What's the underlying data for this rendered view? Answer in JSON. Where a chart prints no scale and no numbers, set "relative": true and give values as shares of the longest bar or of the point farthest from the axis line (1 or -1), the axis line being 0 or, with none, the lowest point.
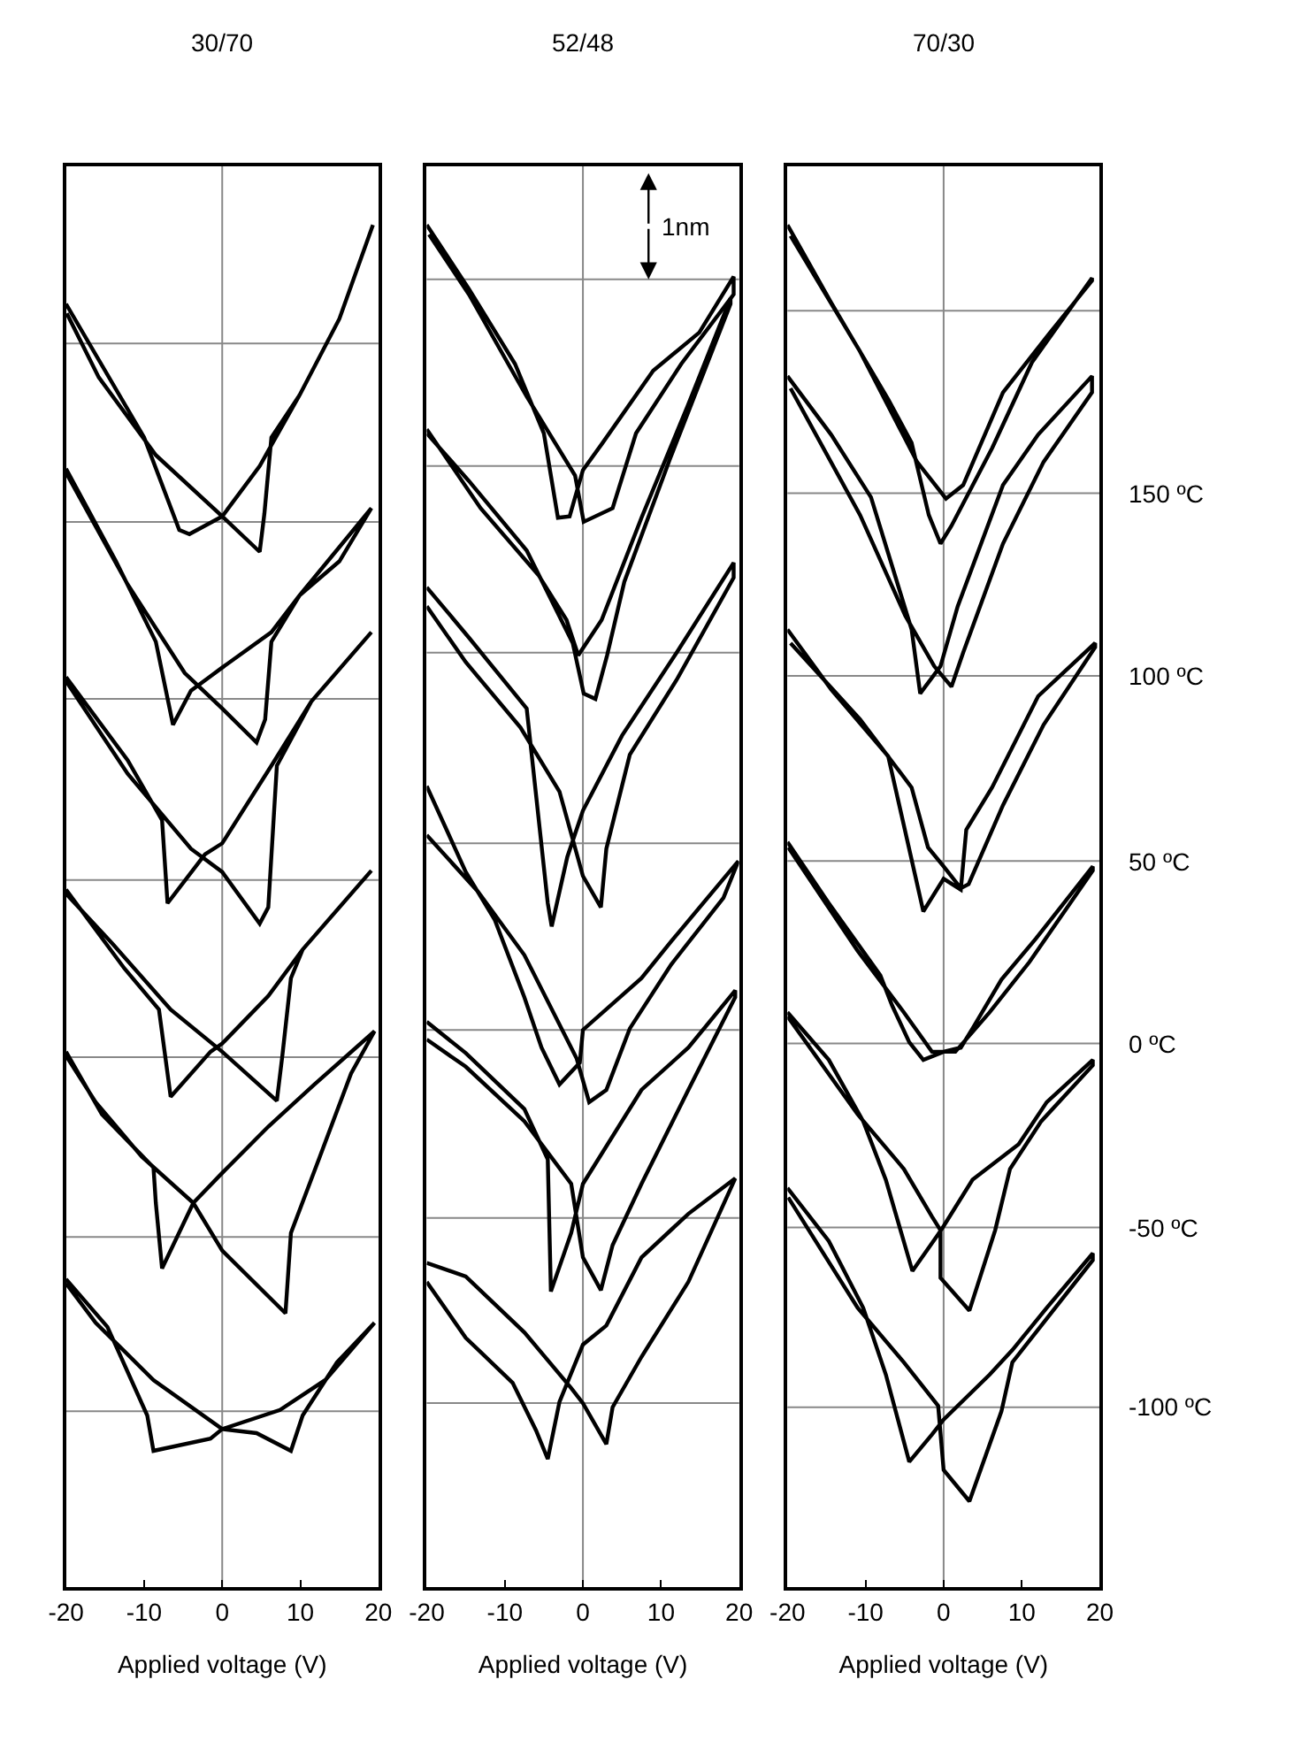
{
  "chart_data": [
    {
      "type": "line",
      "title": "30/70",
      "xlabel": "Applied voltage (V)",
      "relative": true,
      "xlim": [
        -20,
        20
      ],
      "xticks": [
        -20,
        -10,
        0,
        10,
        20
      ],
      "series": [
        {
          "color": "#000000",
          "x": [
            -20,
            -10,
            -5.5,
            -4.2,
            0,
            4.8,
            9.9,
            15,
            19.3,
            15,
            9.9,
            6.3,
            5.4,
            4.8,
            0,
            -8.5,
            -15.8,
            -19.9
          ],
          "values": [
            0.942,
            0.844,
            0.776,
            0.773,
            0.786,
            0.823,
            0.875,
            0.931,
            1.0,
            0.931,
            0.875,
            0.844,
            0.788,
            0.76,
            0.786,
            0.831,
            0.888,
            0.935
          ]
        },
        {
          "color": "#000000",
          "x": [
            -20,
            -13.6,
            -8.5,
            -6.3,
            -4,
            0,
            6.3,
            9.9,
            15,
            19.1,
            9.9,
            6.3,
            5.5,
            4.4,
            0,
            -4.8,
            -12.1,
            -20
          ],
          "values": [
            0.821,
            0.753,
            0.694,
            0.633,
            0.658,
            0.675,
            0.701,
            0.728,
            0.753,
            0.792,
            0.728,
            0.694,
            0.637,
            0.62,
            0.645,
            0.671,
            0.736,
            0.818
          ]
        },
        {
          "color": "#000000",
          "x": [
            -20,
            -12.1,
            -7.7,
            -7,
            -2.2,
            0,
            6.3,
            11.4,
            19.1,
            11.4,
            7,
            5.9,
            4.8,
            0,
            -4,
            -12.1,
            -20
          ],
          "values": [
            0.668,
            0.607,
            0.563,
            0.502,
            0.538,
            0.546,
            0.603,
            0.65,
            0.701,
            0.65,
            0.603,
            0.499,
            0.487,
            0.525,
            0.542,
            0.597,
            0.665
          ]
        },
        {
          "color": "#000000",
          "x": [
            -20,
            -12.5,
            -8.1,
            -6.6,
            -1.5,
            0,
            5.9,
            10.3,
            19.1,
            10.3,
            8.8,
            7.7,
            7,
            0,
            -6.6,
            -14,
            -20
          ],
          "values": [
            0.512,
            0.454,
            0.424,
            0.36,
            0.393,
            0.399,
            0.434,
            0.468,
            0.526,
            0.468,
            0.447,
            0.39,
            0.357,
            0.393,
            0.424,
            0.472,
            0.509
          ]
        },
        {
          "color": "#000000",
          "x": [
            -20,
            -15.4,
            -8.8,
            -8.5,
            -7.7,
            -3.7,
            0,
            5.9,
            11.8,
            19.5,
            16.5,
            12.5,
            8.8,
            8.1,
            0,
            -3.7,
            -10.3,
            -16.2,
            -20
          ],
          "values": [
            0.393,
            0.347,
            0.308,
            0.282,
            0.234,
            0.282,
            0.304,
            0.338,
            0.369,
            0.408,
            0.377,
            0.316,
            0.26,
            0.201,
            0.247,
            0.282,
            0.316,
            0.356,
            0.39
          ]
        },
        {
          "color": "#000000",
          "x": [
            -20,
            -14.7,
            -9.6,
            -8.8,
            -1.5,
            0,
            7.4,
            13.2,
            19.5,
            14.7,
            10.3,
            8.8,
            4.4,
            0,
            -8.8,
            -16.2,
            -20
          ],
          "values": [
            0.226,
            0.191,
            0.126,
            0.1,
            0.109,
            0.116,
            0.13,
            0.152,
            0.194,
            0.165,
            0.126,
            0.1,
            0.113,
            0.116,
            0.152,
            0.194,
            0.223
          ]
        }
      ],
      "ref_lines": [
        {
          "axis": "x",
          "value": 0,
          "color": "#888888"
        },
        {
          "axis": "y",
          "value": 0.913,
          "color": "#888888"
        },
        {
          "axis": "y",
          "value": 0.782,
          "color": "#888888"
        },
        {
          "axis": "y",
          "value": 0.652,
          "color": "#888888"
        },
        {
          "axis": "y",
          "value": 0.519,
          "color": "#888888"
        },
        {
          "axis": "y",
          "value": 0.389,
          "color": "#888888"
        },
        {
          "axis": "y",
          "value": 0.257,
          "color": "#888888"
        },
        {
          "axis": "y",
          "value": 0.129,
          "color": "#888888"
        }
      ]
    },
    {
      "type": "line",
      "title": "52/48",
      "xlabel": "Applied voltage (V)",
      "relative": true,
      "xlim": [
        -20,
        20
      ],
      "xticks": [
        -20,
        -10,
        0,
        10,
        20
      ],
      "annotations": [
        "1nm"
      ],
      "series": [
        {
          "color": "#000000",
          "x": [
            -20,
            -14.6,
            -8.7,
            -5,
            -3.2,
            -1.7,
            0,
            2.4,
            9,
            14.9,
            19.3,
            19.3,
            12.6,
            6.8,
            3.8,
            0.1,
            -1,
            -7.2,
            -14.6,
            -19.7
          ],
          "values": [
            1.0,
            0.953,
            0.898,
            0.847,
            0.785,
            0.786,
            0.82,
            0.839,
            0.893,
            0.921,
            0.962,
            0.949,
            0.898,
            0.847,
            0.792,
            0.782,
            0.816,
            0.874,
            0.949,
            0.993
          ]
        },
        {
          "color": "#000000",
          "x": [
            -20,
            -13.1,
            -5.7,
            -2.1,
            -0.6,
            2.4,
            7.5,
            13.4,
            18.9,
            18.9,
            11.2,
            5.3,
            3.1,
            1.6,
            0.1,
            -1.3,
            -7.2,
            -14.6,
            -20
          ],
          "values": [
            0.85,
            0.792,
            0.743,
            0.71,
            0.684,
            0.71,
            0.785,
            0.867,
            0.946,
            0.942,
            0.829,
            0.738,
            0.684,
            0.652,
            0.656,
            0.693,
            0.761,
            0.812,
            0.847
          ]
        },
        {
          "color": "#000000",
          "x": [
            -20,
            -14.6,
            -7.2,
            -4.5,
            -4,
            -2,
            0,
            5,
            12,
            19.3,
            19.3,
            12,
            6,
            3,
            2.3,
            0,
            -3,
            -8,
            -15,
            -20
          ],
          "values": [
            0.734,
            0.697,
            0.645,
            0.502,
            0.485,
            0.536,
            0.57,
            0.625,
            0.686,
            0.752,
            0.741,
            0.666,
            0.611,
            0.542,
            0.499,
            0.522,
            0.584,
            0.631,
            0.679,
            0.72
          ]
        },
        {
          "color": "#000000",
          "x": [
            -20,
            -15,
            -11.3,
            -7.5,
            -5.3,
            -3,
            -0.4,
            0,
            7.5,
            11.3,
            19.9,
            18,
            11.3,
            6,
            3,
            0.8,
            -0.8,
            -7.5,
            -13.5,
            -20
          ],
          "values": [
            0.588,
            0.525,
            0.49,
            0.433,
            0.396,
            0.369,
            0.385,
            0.409,
            0.447,
            0.474,
            0.533,
            0.506,
            0.457,
            0.41,
            0.365,
            0.356,
            0.388,
            0.464,
            0.511,
            0.552
          ]
        },
        {
          "color": "#000000",
          "x": [
            -20,
            -15,
            -7.5,
            -4.5,
            -4.1,
            -1.5,
            0,
            7.5,
            13.5,
            19.5,
            19.5,
            13.5,
            7.5,
            3.8,
            2.3,
            0,
            -1.5,
            -7.5,
            -15,
            -20
          ],
          "values": [
            0.415,
            0.392,
            0.351,
            0.314,
            0.217,
            0.26,
            0.296,
            0.365,
            0.396,
            0.438,
            0.433,
            0.365,
            0.296,
            0.251,
            0.218,
            0.242,
            0.296,
            0.342,
            0.382,
            0.402
          ]
        },
        {
          "color": "#000000",
          "x": [
            -20,
            -15,
            -7.5,
            -1.5,
            0,
            3,
            3.8,
            7.5,
            13.5,
            19.5,
            13.5,
            7.5,
            3,
            0,
            -3,
            -4.5,
            -6,
            -9,
            -15,
            -20
          ],
          "values": [
            0.238,
            0.228,
            0.187,
            0.146,
            0.135,
            0.105,
            0.132,
            0.169,
            0.224,
            0.3,
            0.274,
            0.242,
            0.192,
            0.178,
            0.136,
            0.094,
            0.115,
            0.15,
            0.183,
            0.224
          ]
        }
      ],
      "ref_lines": [
        {
          "axis": "x",
          "value": 0,
          "color": "#888888"
        },
        {
          "axis": "y",
          "value": 0.96,
          "color": "#888888"
        },
        {
          "axis": "y",
          "value": 0.823,
          "color": "#888888"
        },
        {
          "axis": "y",
          "value": 0.686,
          "color": "#888888"
        },
        {
          "axis": "y",
          "value": 0.546,
          "color": "#888888"
        },
        {
          "axis": "y",
          "value": 0.409,
          "color": "#888888"
        },
        {
          "axis": "y",
          "value": 0.271,
          "color": "#888888"
        },
        {
          "axis": "y",
          "value": 0.135,
          "color": "#888888"
        }
      ]
    },
    {
      "type": "line",
      "title": "70/30",
      "xlabel": "Applied voltage (V)",
      "relative": true,
      "xlim": [
        -20,
        20
      ],
      "xticks": [
        -20,
        -10,
        0,
        10,
        20
      ],
      "series": [
        {
          "color": "#000000",
          "x": [
            -20,
            -14.4,
            -7.1,
            -4.1,
            -1.9,
            -0.4,
            1,
            6.2,
            11.3,
            19,
            19,
            13.5,
            7.6,
            2.5,
            0.3,
            -3.4,
            -10.7,
            -19.6
          ],
          "values": [
            1.0,
            0.943,
            0.872,
            0.84,
            0.787,
            0.766,
            0.779,
            0.836,
            0.899,
            0.961,
            0.959,
            0.92,
            0.877,
            0.809,
            0.799,
            0.826,
            0.907,
            0.992
          ]
        },
        {
          "color": "#000000",
          "x": [
            -20,
            -14.4,
            -9.3,
            -4.1,
            -3,
            -0.4,
            1.8,
            7.6,
            12.1,
            19,
            19,
            12.8,
            7.6,
            2.5,
            1,
            -1.2,
            -4.9,
            -10.7,
            -19.6
          ],
          "values": [
            0.889,
            0.846,
            0.8,
            0.703,
            0.656,
            0.676,
            0.72,
            0.809,
            0.846,
            0.889,
            0.877,
            0.826,
            0.766,
            0.686,
            0.661,
            0.676,
            0.713,
            0.787,
            0.88
          ]
        },
        {
          "color": "#000000",
          "x": [
            -20,
            -14.4,
            -7.1,
            -2.6,
            0,
            2.2,
            2.9,
            6.2,
            12.1,
            19.4,
            19.4,
            12.8,
            7.6,
            3.2,
            2.2,
            0,
            -2,
            -4.1,
            -10.7,
            -19.6
          ],
          "values": [
            0.703,
            0.659,
            0.61,
            0.496,
            0.52,
            0.512,
            0.556,
            0.587,
            0.654,
            0.693,
            0.69,
            0.633,
            0.574,
            0.516,
            0.513,
            0.529,
            0.543,
            0.587,
            0.637,
            0.693
          ]
        },
        {
          "color": "#000000",
          "x": [
            -20,
            -14.7,
            -8.1,
            -6.6,
            -4.4,
            -2.6,
            0,
            2.2,
            3.7,
            7.4,
            11.8,
            19.1,
            19.1,
            11,
            5.9,
            1.5,
            -1.5,
            -5.1,
            -11,
            -19.9
          ],
          "values": [
            0.547,
            0.502,
            0.449,
            0.427,
            0.4,
            0.387,
            0.393,
            0.396,
            0.41,
            0.446,
            0.476,
            0.529,
            0.526,
            0.459,
            0.422,
            0.393,
            0.393,
            0.422,
            0.467,
            0.543
          ]
        },
        {
          "color": "#000000",
          "x": [
            -20,
            -14.7,
            -10.3,
            -7.4,
            -4,
            -0.7,
            0,
            3.7,
            9.6,
            13.2,
            19.1,
            19.1,
            12.5,
            8.5,
            6.6,
            3.3,
            -0.4,
            -0.4,
            -1.5,
            -5.1,
            -11,
            -20
          ],
          "values": [
            0.422,
            0.387,
            0.342,
            0.299,
            0.232,
            0.259,
            0.265,
            0.299,
            0.325,
            0.356,
            0.387,
            0.383,
            0.342,
            0.307,
            0.262,
            0.203,
            0.227,
            0.262,
            0.272,
            0.307,
            0.347,
            0.419
          ]
        },
        {
          "color": "#000000",
          "x": [
            -20,
            -14.7,
            -10.3,
            -7.4,
            -4.4,
            -1.5,
            0,
            5.9,
            8.8,
            13.2,
            19.1,
            19.1,
            8.8,
            7.4,
            3.3,
            0,
            -0.7,
            -5.1,
            -11,
            -19.9
          ],
          "values": [
            0.293,
            0.254,
            0.205,
            0.156,
            0.092,
            0.112,
            0.123,
            0.156,
            0.174,
            0.205,
            0.245,
            0.24,
            0.165,
            0.129,
            0.063,
            0.086,
            0.133,
            0.165,
            0.205,
            0.286
          ]
        }
      ],
      "ref_lines": [
        {
          "axis": "x",
          "value": 0,
          "color": "#888888"
        },
        {
          "axis": "y",
          "value": 0.937,
          "color": "#888888"
        },
        {
          "axis": "y",
          "value": 0.803,
          "color": "#888888",
          "label": "150 ºC"
        },
        {
          "axis": "y",
          "value": 0.669,
          "color": "#888888",
          "label": "100 ºC"
        },
        {
          "axis": "y",
          "value": 0.533,
          "color": "#888888",
          "label": "50 ºC"
        },
        {
          "axis": "y",
          "value": 0.399,
          "color": "#888888",
          "label": "0 ºC"
        },
        {
          "axis": "y",
          "value": 0.264,
          "color": "#888888",
          "label": "-50 ºC"
        },
        {
          "axis": "y",
          "value": 0.132,
          "color": "#888888",
          "label": "-100 ºC"
        }
      ]
    }
  ]
}
